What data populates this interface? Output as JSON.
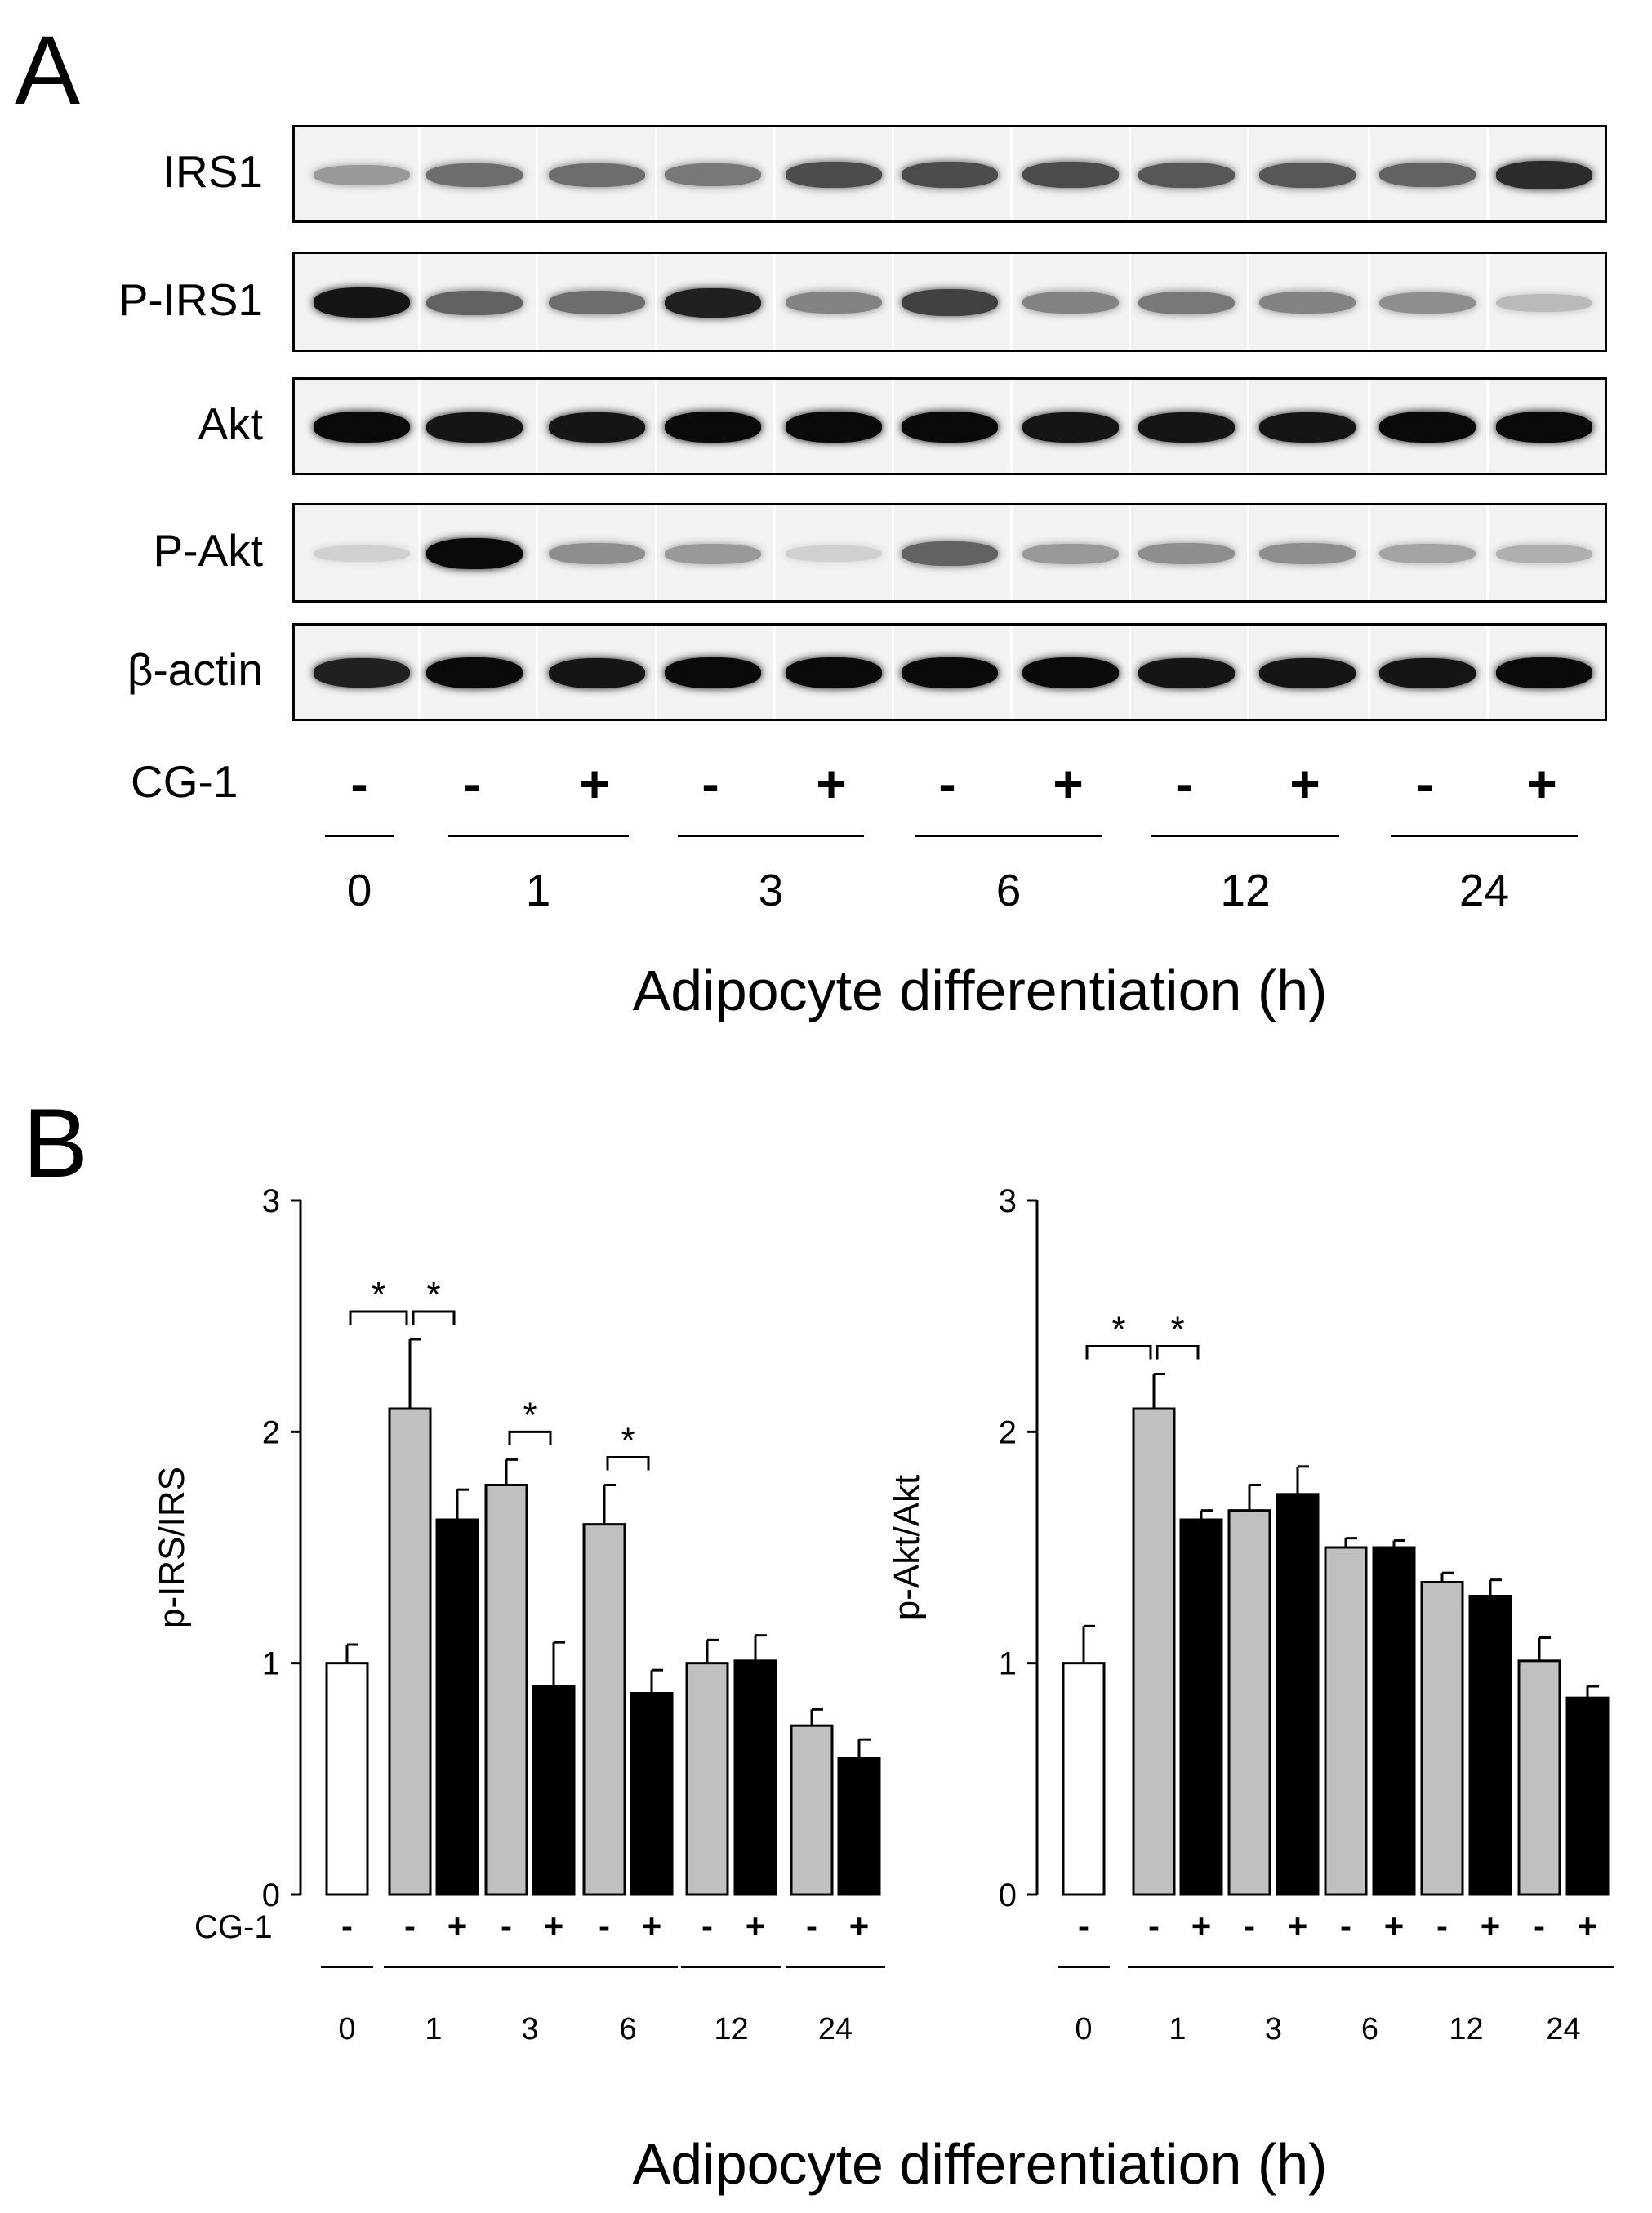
{
  "panel_a": {
    "letter": "A",
    "blot_rows": [
      {
        "label": "IRS1",
        "intensity": [
          0.35,
          0.55,
          0.55,
          0.5,
          0.7,
          0.7,
          0.7,
          0.65,
          0.65,
          0.6,
          0.85
        ]
      },
      {
        "label": "P-IRS1",
        "intensity": [
          0.95,
          0.6,
          0.55,
          0.9,
          0.45,
          0.75,
          0.45,
          0.5,
          0.45,
          0.4,
          0.2
        ]
      },
      {
        "label": "Akt",
        "intensity": [
          1.0,
          0.95,
          0.95,
          1.0,
          1.0,
          1.0,
          0.95,
          0.95,
          0.95,
          1.0,
          1.0
        ]
      },
      {
        "label": "P-Akt",
        "intensity": [
          0.1,
          1.0,
          0.4,
          0.35,
          0.1,
          0.6,
          0.35,
          0.4,
          0.4,
          0.3,
          0.25
        ]
      },
      {
        "label": "β-actin",
        "intensity": [
          0.9,
          1.0,
          0.95,
          1.0,
          1.0,
          1.0,
          1.0,
          0.95,
          0.95,
          0.95,
          1.0
        ]
      }
    ],
    "treatment_label": "CG-1",
    "signs": [
      "-",
      "-",
      "+",
      "-",
      "+",
      "-",
      "+",
      "-",
      "+",
      "-",
      "+"
    ],
    "timepoints": [
      "0",
      "1",
      "3",
      "6",
      "12",
      "24"
    ],
    "xlabel": "Adipocyte differentiation (h)"
  },
  "panel_b": {
    "letter": "B",
    "treatment_label": "CG-1",
    "signs": [
      "-",
      "-",
      "+",
      "-",
      "+",
      "-",
      "+",
      "-",
      "+",
      "-",
      "+"
    ],
    "timepoints": [
      "0",
      "1",
      "3",
      "6",
      "12",
      "24"
    ],
    "xlabel": "Adipocyte differentiation (h)",
    "colors": {
      "control": "#ffffff",
      "minus": "#c0c0c0",
      "plus": "#000000"
    }
  },
  "chart_data": [
    {
      "type": "bar",
      "ylabel": "p-IRS/IRS",
      "ylim": [
        0,
        3
      ],
      "yticks": [
        "0",
        "1",
        "2",
        "3"
      ],
      "categories": [
        "0",
        "1",
        "3",
        "6",
        "12",
        "24"
      ],
      "bars": [
        {
          "time": "0",
          "cg1": "-",
          "value": 1.0,
          "error": 0.08
        },
        {
          "time": "1",
          "cg1": "-",
          "value": 2.1,
          "error": 0.3
        },
        {
          "time": "1",
          "cg1": "+",
          "value": 1.62,
          "error": 0.13
        },
        {
          "time": "3",
          "cg1": "-",
          "value": 1.77,
          "error": 0.11
        },
        {
          "time": "3",
          "cg1": "+",
          "value": 0.9,
          "error": 0.19
        },
        {
          "time": "6",
          "cg1": "-",
          "value": 1.6,
          "error": 0.17
        },
        {
          "time": "6",
          "cg1": "+",
          "value": 0.87,
          "error": 0.1
        },
        {
          "time": "12",
          "cg1": "-",
          "value": 1.0,
          "error": 0.1
        },
        {
          "time": "12",
          "cg1": "+",
          "value": 1.01,
          "error": 0.11
        },
        {
          "time": "24",
          "cg1": "-",
          "value": 0.73,
          "error": 0.07
        },
        {
          "time": "24",
          "cg1": "+",
          "value": 0.59,
          "error": 0.08
        }
      ],
      "significance": [
        {
          "from": 0,
          "to": 1,
          "label": "*"
        },
        {
          "from": 1,
          "to": 2,
          "label": "*"
        },
        {
          "from": 3,
          "to": 4,
          "label": "*"
        },
        {
          "from": 5,
          "to": 6,
          "label": "*"
        }
      ]
    },
    {
      "type": "bar",
      "ylabel": "p-Akt/Akt",
      "ylim": [
        0,
        3
      ],
      "yticks": [
        "0",
        "1",
        "2",
        "3"
      ],
      "categories": [
        "0",
        "1",
        "3",
        "6",
        "12",
        "24"
      ],
      "bars": [
        {
          "time": "0",
          "cg1": "-",
          "value": 1.0,
          "error": 0.16
        },
        {
          "time": "1",
          "cg1": "-",
          "value": 2.1,
          "error": 0.15
        },
        {
          "time": "1",
          "cg1": "+",
          "value": 1.62,
          "error": 0.04
        },
        {
          "time": "3",
          "cg1": "-",
          "value": 1.66,
          "error": 0.11
        },
        {
          "time": "3",
          "cg1": "+",
          "value": 1.73,
          "error": 0.12
        },
        {
          "time": "6",
          "cg1": "-",
          "value": 1.5,
          "error": 0.04
        },
        {
          "time": "6",
          "cg1": "+",
          "value": 1.5,
          "error": 0.03
        },
        {
          "time": "12",
          "cg1": "-",
          "value": 1.35,
          "error": 0.04
        },
        {
          "time": "12",
          "cg1": "+",
          "value": 1.29,
          "error": 0.07
        },
        {
          "time": "24",
          "cg1": "-",
          "value": 1.01,
          "error": 0.1
        },
        {
          "time": "24",
          "cg1": "+",
          "value": 0.85,
          "error": 0.05
        }
      ],
      "significance": [
        {
          "from": 0,
          "to": 1,
          "label": "*"
        },
        {
          "from": 1,
          "to": 2,
          "label": "*"
        }
      ]
    }
  ]
}
